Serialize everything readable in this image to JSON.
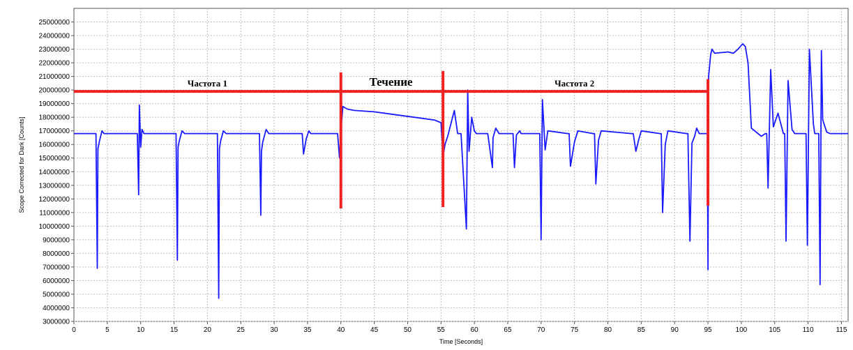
{
  "chart_data": {
    "type": "line",
    "title": "",
    "xlabel": "Time [Seconds]",
    "ylabel": "Scope Corrected for Dark [Counts]",
    "xlim": [
      0,
      116
    ],
    "ylim": [
      3000000,
      26000000
    ],
    "grid": true,
    "x_ticks": [
      0,
      5,
      10,
      15,
      20,
      25,
      30,
      35,
      40,
      45,
      50,
      55,
      60,
      65,
      70,
      75,
      80,
      85,
      90,
      95,
      100,
      105,
      110,
      115
    ],
    "y_ticks": [
      3000000,
      4000000,
      5000000,
      6000000,
      7000000,
      8000000,
      9000000,
      10000000,
      11000000,
      12000000,
      13000000,
      14000000,
      15000000,
      16000000,
      17000000,
      18000000,
      19000000,
      20000000,
      21000000,
      22000000,
      23000000,
      24000000,
      25000000
    ],
    "series": [
      {
        "color": "#1a1aff",
        "x": [
          0,
          3.3,
          3.5,
          3.6,
          3.8,
          4.2,
          4.5,
          5,
          9.5,
          9.7,
          9.8,
          10,
          10.2,
          10.5,
          11,
          15.3,
          15.5,
          15.6,
          15.8,
          16.2,
          16.6,
          17,
          21.5,
          21.7,
          21.8,
          22,
          22.4,
          22.8,
          23,
          27.8,
          28,
          28.1,
          28.3,
          28.8,
          29.2,
          29.5,
          34.2,
          34.4,
          34.8,
          35.2,
          35.5,
          39.5,
          39.8,
          40,
          40.3,
          40.6,
          41,
          42,
          45,
          48,
          51,
          54,
          55,
          55.3,
          55.6,
          56,
          57,
          57.5,
          58,
          58.8,
          59,
          59.2,
          59.6,
          60,
          60.3,
          60.8,
          62,
          62.7,
          62.8,
          63.2,
          63.7,
          64,
          65.8,
          66,
          66.3,
          66.8,
          67,
          69.8,
          70,
          70.2,
          70.6,
          71,
          74,
          74.2,
          74.4,
          75,
          75.5,
          77.8,
          78,
          78.2,
          78.6,
          79,
          83.5,
          83.8,
          84.2,
          84.6,
          85,
          87.8,
          88,
          88.2,
          88.6,
          89,
          91.8,
          92,
          92.3,
          92.6,
          93,
          93.3,
          93.7,
          94.5,
          94.9,
          95,
          95.1,
          95.4,
          95.6,
          96,
          98,
          98.8,
          99.5,
          100.2,
          100.6,
          101,
          101.5,
          103,
          103.6,
          103.8,
          104,
          104.4,
          104.8,
          105.5,
          106.3,
          106.5,
          106.7,
          107,
          107.6,
          108,
          109.5,
          109.7,
          109.9,
          110.2,
          110.8,
          111,
          111.6,
          111.8,
          112,
          112.2,
          112.8,
          113.3,
          114,
          116
        ],
        "y": [
          16800000,
          16800000,
          6900000,
          15700000,
          16200000,
          17000000,
          16800000,
          16800000,
          16800000,
          12300000,
          18900000,
          15800000,
          17100000,
          16800000,
          16800000,
          16800000,
          7500000,
          15800000,
          16300000,
          17000000,
          16800000,
          16800000,
          16800000,
          4700000,
          15700000,
          16300000,
          17000000,
          16800000,
          16800000,
          16800000,
          10800000,
          15500000,
          16200000,
          17100000,
          16800000,
          16800000,
          16800000,
          15300000,
          16400000,
          17000000,
          16800000,
          16800000,
          15000000,
          17000000,
          18800000,
          18700000,
          18600000,
          18500000,
          18400000,
          18200000,
          18000000,
          17800000,
          17600000,
          15100000,
          16000000,
          16600000,
          18500000,
          16800000,
          16800000,
          9800000,
          20000000,
          15500000,
          18000000,
          17000000,
          16800000,
          16800000,
          16800000,
          14300000,
          16500000,
          17200000,
          16800000,
          16800000,
          16800000,
          14300000,
          16700000,
          17000000,
          16800000,
          16800000,
          9000000,
          19300000,
          15600000,
          17000000,
          16800000,
          16800000,
          14400000,
          16200000,
          17000000,
          16800000,
          16800000,
          13100000,
          16300000,
          17000000,
          16800000,
          16800000,
          15500000,
          16300000,
          17000000,
          16800000,
          16800000,
          11000000,
          16000000,
          17000000,
          16800000,
          16800000,
          8900000,
          16100000,
          16600000,
          17200000,
          16800000,
          16800000,
          16800000,
          6800000,
          21000000,
          22600000,
          23000000,
          22700000,
          22800000,
          22700000,
          23000000,
          23400000,
          23200000,
          22000000,
          17200000,
          16600000,
          16800000,
          16800000,
          12800000,
          21500000,
          17300000,
          18300000,
          16800000,
          16800000,
          8900000,
          20700000,
          17100000,
          16800000,
          16800000,
          16800000,
          8600000,
          23000000,
          17500000,
          16800000,
          16800000,
          5700000,
          22900000,
          17800000,
          16900000,
          16800000,
          16800000,
          16800000
        ]
      }
    ],
    "annotations": {
      "color": "#ee2222",
      "regions": [
        {
          "label": "Частота 1",
          "x_start": 0,
          "x_end": 40,
          "y": 19900000
        },
        {
          "label": "Течение",
          "x_start": 40,
          "x_end": 55,
          "y": 19900000
        },
        {
          "label": "Частота 2",
          "x_start": 55,
          "x_end": 95,
          "y": 19900000
        }
      ],
      "vertical_lines": [
        {
          "x": 40,
          "y_from": 11300000,
          "y_to": 21300000
        },
        {
          "x": 55.3,
          "y_from": 11400000,
          "y_to": 21400000
        },
        {
          "x": 95,
          "y_from": 11500000,
          "y_to": 20800000
        }
      ]
    }
  }
}
